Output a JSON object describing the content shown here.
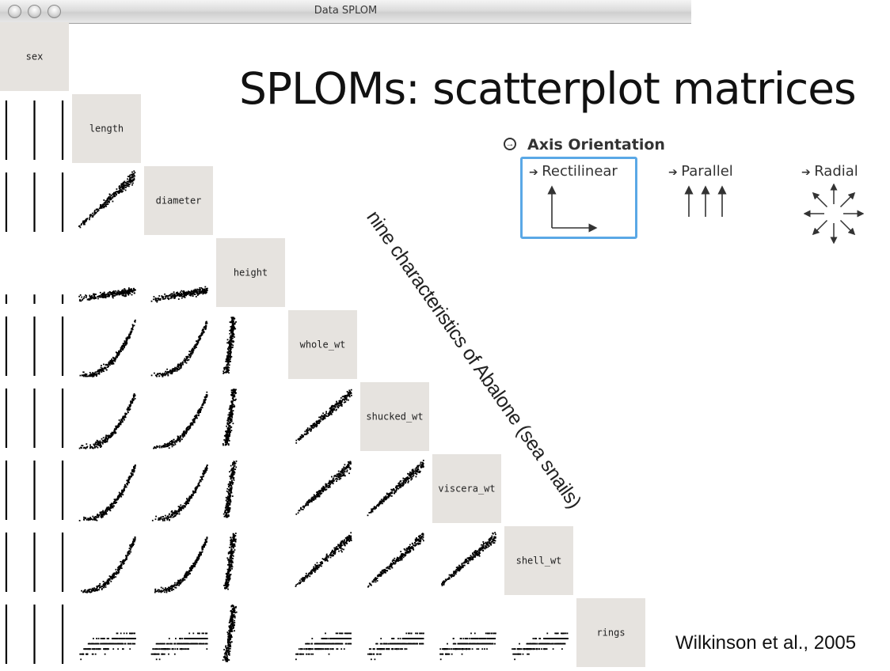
{
  "window": {
    "title": "Data SPLOM"
  },
  "slide": {
    "title": "SPLOMs: scatterplot matrices",
    "note": "nine characteristics of Abalone (sea snails)",
    "citation": "Wilkinson et al., 2005"
  },
  "axis_panel": {
    "heading": "Axis Orientation",
    "options": [
      "Rectilinear",
      "Parallel",
      "Radial"
    ],
    "selected": "Rectilinear",
    "highlight_color": "#5aa8e6",
    "icons": [
      "circle-arrow-icon",
      "right-arrow-icon",
      "axes-rectilinear-icon",
      "axes-parallel-icon",
      "axes-radial-icon"
    ]
  },
  "splom": {
    "variables": [
      "sex",
      "length",
      "diameter",
      "height",
      "whole_wt",
      "shucked_wt",
      "viscera_wt",
      "shell_wt",
      "rings"
    ],
    "diagonal_color": "#e6e3df",
    "point_color": "#000000"
  },
  "chart_data": {
    "type": "scatter",
    "matrix": "lower-triangular scatterplot matrix",
    "variables": [
      "sex",
      "length",
      "diameter",
      "height",
      "whole_wt",
      "shucked_wt",
      "viscera_wt",
      "shell_wt",
      "rings"
    ],
    "title": "",
    "grid": false
  }
}
